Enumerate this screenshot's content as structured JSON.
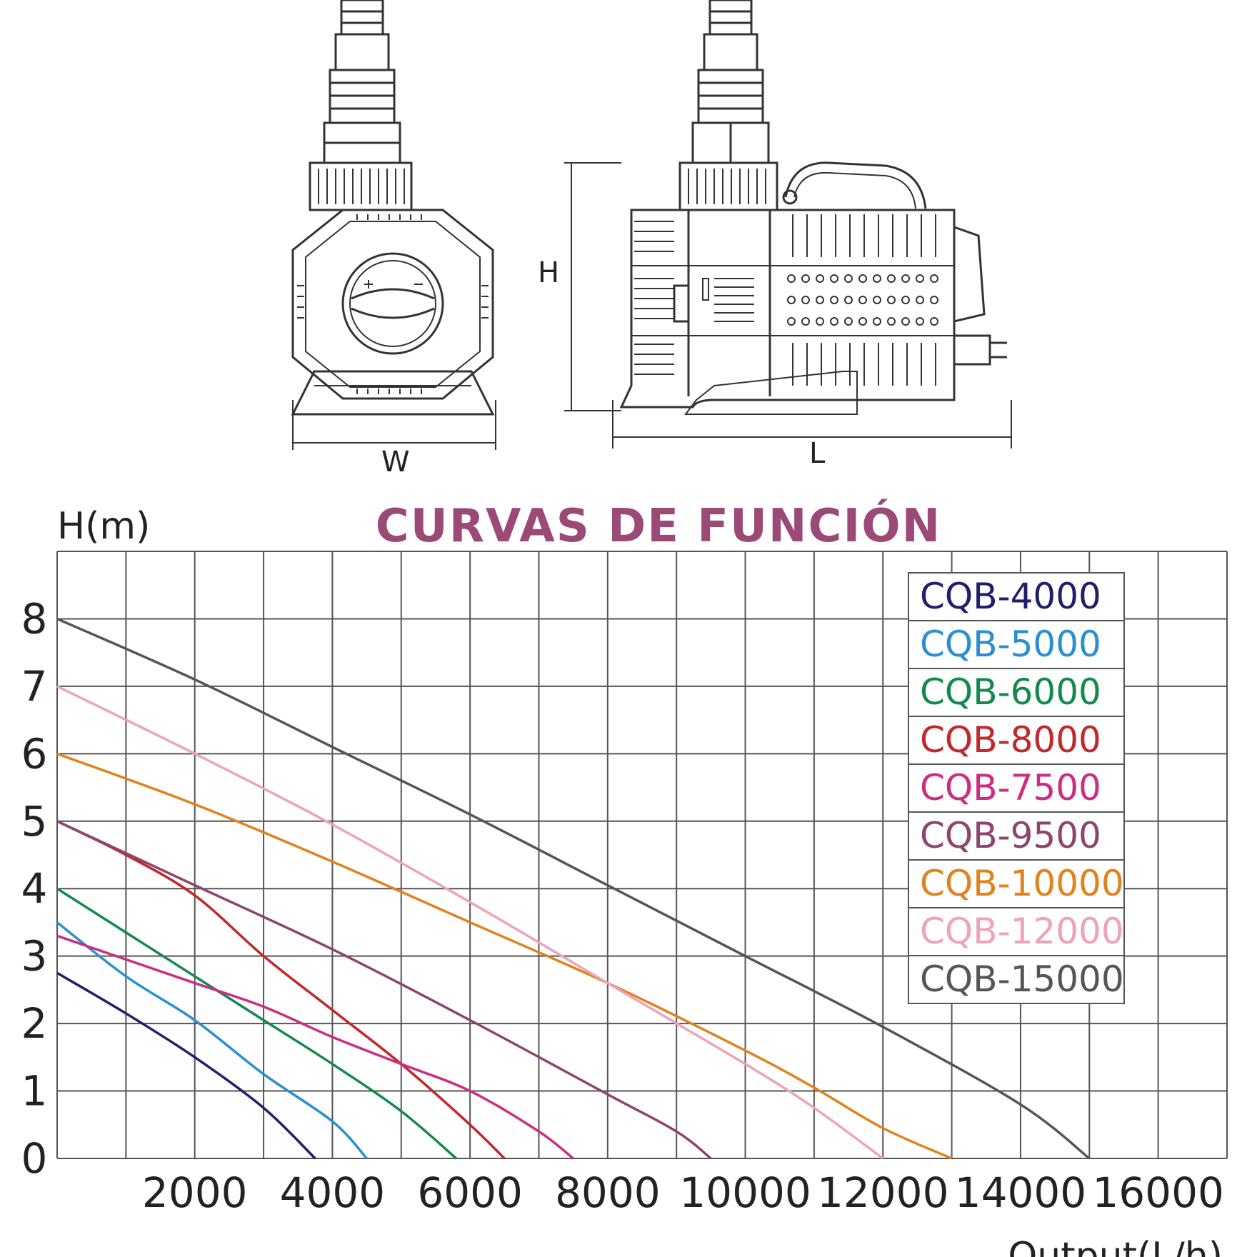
{
  "drawing": {
    "dimensions": {
      "height": "H",
      "width": "W",
      "length": "L"
    }
  },
  "chart_data": {
    "type": "line",
    "title": "CURVAS DE FUNCIÓN",
    "xlabel": "Output(L/h)",
    "ylabel": "H(m)",
    "xlim": [
      0,
      17000
    ],
    "ylim": [
      0,
      9
    ],
    "x_ticks": [
      2000,
      4000,
      6000,
      8000,
      10000,
      12000,
      14000,
      16000
    ],
    "y_ticks": [
      0,
      1,
      2,
      3,
      4,
      5,
      6,
      7,
      8
    ],
    "grid": true,
    "legend_position": "top-right",
    "series": [
      {
        "name": "CQB-4000",
        "color": "#1f1f6b",
        "points": [
          [
            0,
            2.75
          ],
          [
            1000,
            2.15
          ],
          [
            2000,
            1.5
          ],
          [
            3000,
            0.75
          ],
          [
            3750,
            0
          ]
        ]
      },
      {
        "name": "CQB-5000",
        "color": "#2a8fd0",
        "points": [
          [
            0,
            3.5
          ],
          [
            1000,
            2.7
          ],
          [
            2000,
            2.05
          ],
          [
            3000,
            1.25
          ],
          [
            4000,
            0.55
          ],
          [
            4500,
            0
          ]
        ]
      },
      {
        "name": "CQB-6000",
        "color": "#138a4c",
        "points": [
          [
            0,
            4.0
          ],
          [
            1000,
            3.35
          ],
          [
            2000,
            2.7
          ],
          [
            3000,
            2.05
          ],
          [
            4000,
            1.4
          ],
          [
            5000,
            0.7
          ],
          [
            5800,
            0
          ]
        ]
      },
      {
        "name": "CQB-8000",
        "color": "#c0282b",
        "points": [
          [
            0,
            5.0
          ],
          [
            1000,
            4.5
          ],
          [
            2000,
            3.9
          ],
          [
            3000,
            3.0
          ],
          [
            4000,
            2.2
          ],
          [
            5000,
            1.4
          ],
          [
            6000,
            0.5
          ],
          [
            6500,
            0
          ]
        ]
      },
      {
        "name": "CQB-7500",
        "color": "#cc2d82",
        "points": [
          [
            0,
            3.3
          ],
          [
            1000,
            2.95
          ],
          [
            2000,
            2.6
          ],
          [
            3000,
            2.25
          ],
          [
            4000,
            1.8
          ],
          [
            5000,
            1.4
          ],
          [
            6000,
            1.0
          ],
          [
            7000,
            0.4
          ],
          [
            7500,
            0
          ]
        ]
      },
      {
        "name": "CQB-9500",
        "color": "#8d4570",
        "points": [
          [
            0,
            5.0
          ],
          [
            2000,
            4.05
          ],
          [
            4000,
            3.1
          ],
          [
            6000,
            2.05
          ],
          [
            8000,
            0.95
          ],
          [
            9000,
            0.4
          ],
          [
            9500,
            0
          ]
        ]
      },
      {
        "name": "CQB-10000",
        "color": "#e0831f",
        "points": [
          [
            0,
            6.0
          ],
          [
            2000,
            5.25
          ],
          [
            4000,
            4.4
          ],
          [
            6000,
            3.5
          ],
          [
            8000,
            2.6
          ],
          [
            10000,
            1.6
          ],
          [
            11000,
            1.05
          ],
          [
            12000,
            0.45
          ],
          [
            13000,
            0
          ]
        ]
      },
      {
        "name": "CQB-12000",
        "color": "#eea3bd",
        "points": [
          [
            0,
            7.0
          ],
          [
            2000,
            6.0
          ],
          [
            4000,
            4.95
          ],
          [
            6000,
            3.8
          ],
          [
            8000,
            2.6
          ],
          [
            10000,
            1.4
          ],
          [
            11000,
            0.75
          ],
          [
            12000,
            0
          ]
        ]
      },
      {
        "name": "CQB-15000",
        "color": "#555555",
        "points": [
          [
            0,
            8.0
          ],
          [
            2000,
            7.1
          ],
          [
            4000,
            6.1
          ],
          [
            6000,
            5.1
          ],
          [
            8000,
            4.05
          ],
          [
            10000,
            3.0
          ],
          [
            12000,
            1.95
          ],
          [
            14000,
            0.8
          ],
          [
            15000,
            0
          ]
        ]
      }
    ]
  }
}
